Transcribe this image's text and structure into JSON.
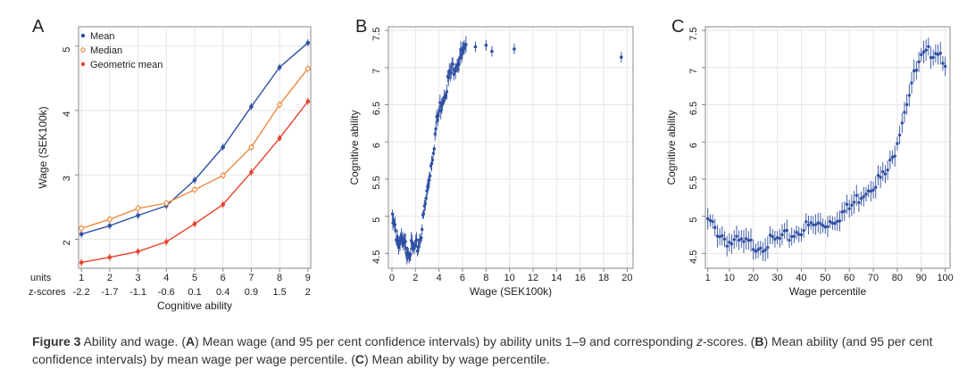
{
  "colors": {
    "mean": "#2f4fa2",
    "median": "#f08a3c",
    "geomean": "#e8432e",
    "grid": "#e6e6e6",
    "axis": "#888888"
  },
  "chart_data": [
    {
      "panel": "A",
      "type": "line",
      "xlabel": "Cognitive ability",
      "ylabel": "Wage (SEK100k)",
      "row_units_label": "units",
      "row_z_label": "z-scores",
      "x": [
        1,
        2,
        3,
        4,
        5,
        6,
        7,
        8,
        9
      ],
      "x_units": [
        "1",
        "2",
        "3",
        "4",
        "5",
        "6",
        "7",
        "8",
        "9"
      ],
      "x_zscores": [
        "-2.2",
        "-1.7",
        "-1.1",
        "-0.6",
        "0.1",
        "0.4",
        "0.9",
        "1.5",
        "2"
      ],
      "xlim": [
        0.9,
        9.1
      ],
      "ylim": [
        1.55,
        5.3
      ],
      "yticks": [
        2,
        3,
        4,
        5
      ],
      "grid": true,
      "legend_position": "top-left",
      "series": [
        {
          "name": "Mean",
          "values": [
            2.08,
            2.21,
            2.37,
            2.52,
            2.92,
            3.43,
            4.06,
            4.67,
            5.05
          ]
        },
        {
          "name": "Median",
          "values": [
            2.17,
            2.31,
            2.48,
            2.56,
            2.77,
            2.99,
            3.43,
            4.09,
            4.65
          ]
        },
        {
          "name": "Geometric mean",
          "values": [
            1.64,
            1.72,
            1.81,
            1.96,
            2.24,
            2.54,
            3.04,
            3.57,
            4.14
          ]
        }
      ]
    },
    {
      "panel": "B",
      "type": "scatter",
      "xlabel": "Wage (SEK100k)",
      "ylabel": "Cognitive ability",
      "xlim": [
        -0.3,
        20.5
      ],
      "ylim": [
        4.3,
        7.55
      ],
      "xticks": [
        0,
        2,
        4,
        6,
        8,
        10,
        12,
        14,
        16,
        18,
        20
      ],
      "yticks": [
        4.5,
        5,
        5.5,
        6,
        6.5,
        7,
        7.5
      ],
      "grid": true,
      "curve_points": [
        [
          0.05,
          4.98
        ],
        [
          0.5,
          4.75
        ],
        [
          1.0,
          4.65
        ],
        [
          1.5,
          4.62
        ],
        [
          2.0,
          4.6
        ],
        [
          2.3,
          4.7
        ],
        [
          2.6,
          4.95
        ],
        [
          3.0,
          5.4
        ],
        [
          3.4,
          5.85
        ],
        [
          3.8,
          6.3
        ],
        [
          4.2,
          6.6
        ],
        [
          4.8,
          6.9
        ],
        [
          5.3,
          7.1
        ],
        [
          5.8,
          7.2
        ],
        [
          6.3,
          7.26
        ]
      ],
      "outliers": [
        [
          7.1,
          7.28
        ],
        [
          8.0,
          7.3
        ],
        [
          8.5,
          7.22
        ],
        [
          10.4,
          7.25
        ],
        [
          19.5,
          7.14
        ]
      ]
    },
    {
      "panel": "C",
      "type": "scatter",
      "xlabel": "Wage percentile",
      "ylabel": "Cognitive ability",
      "xlim": [
        0,
        102
      ],
      "ylim": [
        4.3,
        7.55
      ],
      "xticks": [
        1,
        10,
        20,
        30,
        40,
        50,
        60,
        70,
        80,
        90,
        100
      ],
      "yticks": [
        4.5,
        5,
        5.5,
        6,
        6.5,
        7,
        7.5
      ],
      "grid": true,
      "curve_points": [
        [
          1,
          4.98
        ],
        [
          5,
          4.85
        ],
        [
          10,
          4.7
        ],
        [
          15,
          4.68
        ],
        [
          20,
          4.66
        ],
        [
          25,
          4.68
        ],
        [
          30,
          4.72
        ],
        [
          35,
          4.78
        ],
        [
          40,
          4.88
        ],
        [
          45,
          4.92
        ],
        [
          50,
          4.95
        ],
        [
          55,
          5.05
        ],
        [
          60,
          5.15
        ],
        [
          65,
          5.35
        ],
        [
          70,
          5.5
        ],
        [
          75,
          5.6
        ],
        [
          78,
          5.8
        ],
        [
          80,
          6.1
        ],
        [
          83,
          6.5
        ],
        [
          86,
          6.85
        ],
        [
          90,
          7.15
        ],
        [
          94,
          7.27
        ],
        [
          97,
          7.3
        ],
        [
          100,
          7.15
        ]
      ]
    }
  ],
  "caption": {
    "figure_label": "Figure 3",
    "parts": [
      {
        "t": " Ability and wage. ("
      },
      {
        "b": "A"
      },
      {
        "t": ") Mean wage (and 95 per cent confidence intervals) by ability units 1–9 and corresponding "
      },
      {
        "i": "z"
      },
      {
        "t": "-scores. ("
      },
      {
        "b": "B"
      },
      {
        "t": ") Mean ability (and 95 per cent confidence intervals) by mean wage per wage percentile. ("
      },
      {
        "b": "C"
      },
      {
        "t": ") Mean ability by wage percentile."
      }
    ]
  }
}
